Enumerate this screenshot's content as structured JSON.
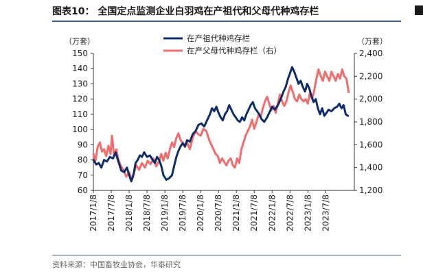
{
  "header": {
    "title": "图表10：  全国定点监测企业白羽鸡在产祖代和父母代种鸡存栏"
  },
  "footer": {
    "source": "资料来源：中国畜牧业协会，华泰研究"
  },
  "chart_data": {
    "type": "line",
    "title": "全国定点监测企业白羽鸡在产祖代和父母代种鸡存栏",
    "left_unit": "（万套）",
    "right_unit": "（万套）",
    "left_axis": {
      "min": 60,
      "max": 150,
      "ticks": [
        60,
        70,
        80,
        90,
        100,
        110,
        120,
        130,
        140,
        150
      ]
    },
    "right_axis": {
      "min": 1200,
      "max": 2400,
      "ticks": [
        "1,200",
        "1,400",
        "1,600",
        "1,800",
        "2,000",
        "2,200",
        "2,400"
      ],
      "tick_values": [
        1200,
        1400,
        1600,
        1800,
        2000,
        2200,
        2400
      ]
    },
    "x_range": [
      2017.0,
      2024.3
    ],
    "x_ticks": [
      {
        "label": "2017/1/8",
        "x": 2017.0
      },
      {
        "label": "2017/7/8",
        "x": 2017.5
      },
      {
        "label": "2018/1/8",
        "x": 2018.0
      },
      {
        "label": "2018/7/8",
        "x": 2018.5
      },
      {
        "label": "2019/1/8",
        "x": 2019.0
      },
      {
        "label": "2019/7/8",
        "x": 2019.5
      },
      {
        "label": "2020/1/8",
        "x": 2020.0
      },
      {
        "label": "2020/7/8",
        "x": 2020.5
      },
      {
        "label": "2021/1/8",
        "x": 2021.0
      },
      {
        "label": "2021/7/8",
        "x": 2021.5
      },
      {
        "label": "2022/1/8",
        "x": 2022.0
      },
      {
        "label": "2022/7/8",
        "x": 2022.5
      },
      {
        "label": "2023/1/8",
        "x": 2023.0
      },
      {
        "label": "2023/7/8",
        "x": 2023.5
      }
    ],
    "series": [
      {
        "name": "在产祖代种鸡存栏",
        "axis": "left",
        "color": "#0d2c6c",
        "points": [
          [
            2017.0,
            80
          ],
          [
            2017.08,
            77
          ],
          [
            2017.15,
            78
          ],
          [
            2017.22,
            75
          ],
          [
            2017.3,
            80
          ],
          [
            2017.38,
            79
          ],
          [
            2017.46,
            82
          ],
          [
            2017.55,
            81
          ],
          [
            2017.62,
            85
          ],
          [
            2017.7,
            79
          ],
          [
            2017.78,
            73
          ],
          [
            2017.86,
            72
          ],
          [
            2017.94,
            75
          ],
          [
            2018.0,
            70
          ],
          [
            2018.06,
            66
          ],
          [
            2018.12,
            70
          ],
          [
            2018.18,
            78
          ],
          [
            2018.24,
            80
          ],
          [
            2018.3,
            83
          ],
          [
            2018.36,
            82
          ],
          [
            2018.42,
            85
          ],
          [
            2018.5,
            82
          ],
          [
            2018.58,
            83
          ],
          [
            2018.66,
            80
          ],
          [
            2018.72,
            78
          ],
          [
            2018.78,
            82
          ],
          [
            2018.84,
            80
          ],
          [
            2018.9,
            76
          ],
          [
            2018.96,
            70
          ],
          [
            2019.04,
            67
          ],
          [
            2019.12,
            68
          ],
          [
            2019.2,
            70
          ],
          [
            2019.26,
            76
          ],
          [
            2019.32,
            82
          ],
          [
            2019.38,
            86
          ],
          [
            2019.44,
            89
          ],
          [
            2019.5,
            91
          ],
          [
            2019.56,
            89
          ],
          [
            2019.62,
            93
          ],
          [
            2019.7,
            92
          ],
          [
            2019.78,
            97
          ],
          [
            2019.86,
            99
          ],
          [
            2019.94,
            103
          ],
          [
            2020.02,
            104
          ],
          [
            2020.1,
            102
          ],
          [
            2020.18,
            106
          ],
          [
            2020.26,
            110
          ],
          [
            2020.32,
            114
          ],
          [
            2020.38,
            112
          ],
          [
            2020.44,
            115
          ],
          [
            2020.5,
            111
          ],
          [
            2020.56,
            108
          ],
          [
            2020.62,
            106
          ],
          [
            2020.68,
            110
          ],
          [
            2020.74,
            112
          ],
          [
            2020.8,
            116
          ],
          [
            2020.86,
            113
          ],
          [
            2020.92,
            110
          ],
          [
            2020.98,
            108
          ],
          [
            2021.04,
            106
          ],
          [
            2021.1,
            105
          ],
          [
            2021.16,
            108
          ],
          [
            2021.22,
            106
          ],
          [
            2021.28,
            110
          ],
          [
            2021.34,
            113
          ],
          [
            2021.4,
            116
          ],
          [
            2021.46,
            118
          ],
          [
            2021.52,
            114
          ],
          [
            2021.58,
            112
          ],
          [
            2021.64,
            110
          ],
          [
            2021.7,
            107
          ],
          [
            2021.78,
            105
          ],
          [
            2021.86,
            108
          ],
          [
            2021.94,
            112
          ],
          [
            2022.0,
            115
          ],
          [
            2022.08,
            113
          ],
          [
            2022.16,
            116
          ],
          [
            2022.24,
            120
          ],
          [
            2022.32,
            125
          ],
          [
            2022.38,
            128
          ],
          [
            2022.44,
            133
          ],
          [
            2022.5,
            137
          ],
          [
            2022.56,
            141
          ],
          [
            2022.62,
            138
          ],
          [
            2022.68,
            134
          ],
          [
            2022.74,
            130
          ],
          [
            2022.8,
            132
          ],
          [
            2022.86,
            128
          ],
          [
            2022.92,
            125
          ],
          [
            2022.98,
            130
          ],
          [
            2023.04,
            127
          ],
          [
            2023.1,
            122
          ],
          [
            2023.16,
            118
          ],
          [
            2023.22,
            120
          ],
          [
            2023.28,
            114
          ],
          [
            2023.34,
            110
          ],
          [
            2023.4,
            114
          ],
          [
            2023.46,
            109
          ],
          [
            2023.52,
            111
          ],
          [
            2023.58,
            113
          ],
          [
            2023.66,
            112
          ],
          [
            2023.74,
            114
          ],
          [
            2023.82,
            115
          ],
          [
            2023.88,
            117
          ],
          [
            2023.94,
            114
          ],
          [
            2024.0,
            116
          ],
          [
            2024.06,
            110
          ],
          [
            2024.12,
            109
          ]
        ]
      },
      {
        "name": "在产父母代种鸡存栏（右）",
        "axis": "right",
        "color": "#f26c6c",
        "points": [
          [
            2017.0,
            1520
          ],
          [
            2017.06,
            1460
          ],
          [
            2017.12,
            1580
          ],
          [
            2017.18,
            1620
          ],
          [
            2017.24,
            1540
          ],
          [
            2017.3,
            1560
          ],
          [
            2017.36,
            1500
          ],
          [
            2017.42,
            1590
          ],
          [
            2017.48,
            1520
          ],
          [
            2017.52,
            1680
          ],
          [
            2017.58,
            1500
          ],
          [
            2017.64,
            1560
          ],
          [
            2017.7,
            1470
          ],
          [
            2017.76,
            1420
          ],
          [
            2017.84,
            1380
          ],
          [
            2017.92,
            1320
          ],
          [
            2018.0,
            1360
          ],
          [
            2018.06,
            1300
          ],
          [
            2018.12,
            1340
          ],
          [
            2018.2,
            1420
          ],
          [
            2018.28,
            1380
          ],
          [
            2018.36,
            1440
          ],
          [
            2018.44,
            1400
          ],
          [
            2018.52,
            1460
          ],
          [
            2018.6,
            1430
          ],
          [
            2018.68,
            1480
          ],
          [
            2018.76,
            1410
          ],
          [
            2018.84,
            1460
          ],
          [
            2018.9,
            1520
          ],
          [
            2018.96,
            1460
          ],
          [
            2019.02,
            1530
          ],
          [
            2019.08,
            1480
          ],
          [
            2019.14,
            1560
          ],
          [
            2019.2,
            1620
          ],
          [
            2019.26,
            1580
          ],
          [
            2019.32,
            1660
          ],
          [
            2019.38,
            1700
          ],
          [
            2019.44,
            1640
          ],
          [
            2019.5,
            1620
          ],
          [
            2019.56,
            1580
          ],
          [
            2019.62,
            1620
          ],
          [
            2019.7,
            1560
          ],
          [
            2019.78,
            1660
          ],
          [
            2019.86,
            1720
          ],
          [
            2019.94,
            1690
          ],
          [
            2020.0,
            1680
          ],
          [
            2020.08,
            1740
          ],
          [
            2020.16,
            1720
          ],
          [
            2020.24,
            1640
          ],
          [
            2020.3,
            1600
          ],
          [
            2020.36,
            1560
          ],
          [
            2020.42,
            1520
          ],
          [
            2020.48,
            1500
          ],
          [
            2020.54,
            1440
          ],
          [
            2020.6,
            1480
          ],
          [
            2020.66,
            1450
          ],
          [
            2020.72,
            1420
          ],
          [
            2020.78,
            1460
          ],
          [
            2020.84,
            1480
          ],
          [
            2020.9,
            1420
          ],
          [
            2020.96,
            1400
          ],
          [
            2021.02,
            1480
          ],
          [
            2021.08,
            1440
          ],
          [
            2021.14,
            1560
          ],
          [
            2021.2,
            1620
          ],
          [
            2021.26,
            1680
          ],
          [
            2021.32,
            1720
          ],
          [
            2021.38,
            1760
          ],
          [
            2021.44,
            1820
          ],
          [
            2021.5,
            1740
          ],
          [
            2021.56,
            1800
          ],
          [
            2021.62,
            1860
          ],
          [
            2021.68,
            1840
          ],
          [
            2021.74,
            1920
          ],
          [
            2021.8,
            1980
          ],
          [
            2021.86,
            2020
          ],
          [
            2021.92,
            1960
          ],
          [
            2021.98,
            1900
          ],
          [
            2022.04,
            1940
          ],
          [
            2022.1,
            1880
          ],
          [
            2022.16,
            1960
          ],
          [
            2022.22,
            2040
          ],
          [
            2022.28,
            1980
          ],
          [
            2022.34,
            1940
          ],
          [
            2022.4,
            1980
          ],
          [
            2022.46,
            2060
          ],
          [
            2022.52,
            2120
          ],
          [
            2022.58,
            2060
          ],
          [
            2022.64,
            2000
          ],
          [
            2022.7,
            1980
          ],
          [
            2022.76,
            2040
          ],
          [
            2022.82,
            2000
          ],
          [
            2022.88,
            1980
          ],
          [
            2022.94,
            2000
          ],
          [
            2023.0,
            1960
          ],
          [
            2023.06,
            2060
          ],
          [
            2023.12,
            2000
          ],
          [
            2023.18,
            2080
          ],
          [
            2023.24,
            2180
          ],
          [
            2023.3,
            2260
          ],
          [
            2023.36,
            2200
          ],
          [
            2023.42,
            2160
          ],
          [
            2023.48,
            2240
          ],
          [
            2023.54,
            2200
          ],
          [
            2023.6,
            2160
          ],
          [
            2023.66,
            2240
          ],
          [
            2023.72,
            2200
          ],
          [
            2023.78,
            2160
          ],
          [
            2023.84,
            2220
          ],
          [
            2023.9,
            2180
          ],
          [
            2023.96,
            2260
          ],
          [
            2024.02,
            2200
          ],
          [
            2024.08,
            2180
          ],
          [
            2024.14,
            2060
          ]
        ]
      }
    ]
  }
}
